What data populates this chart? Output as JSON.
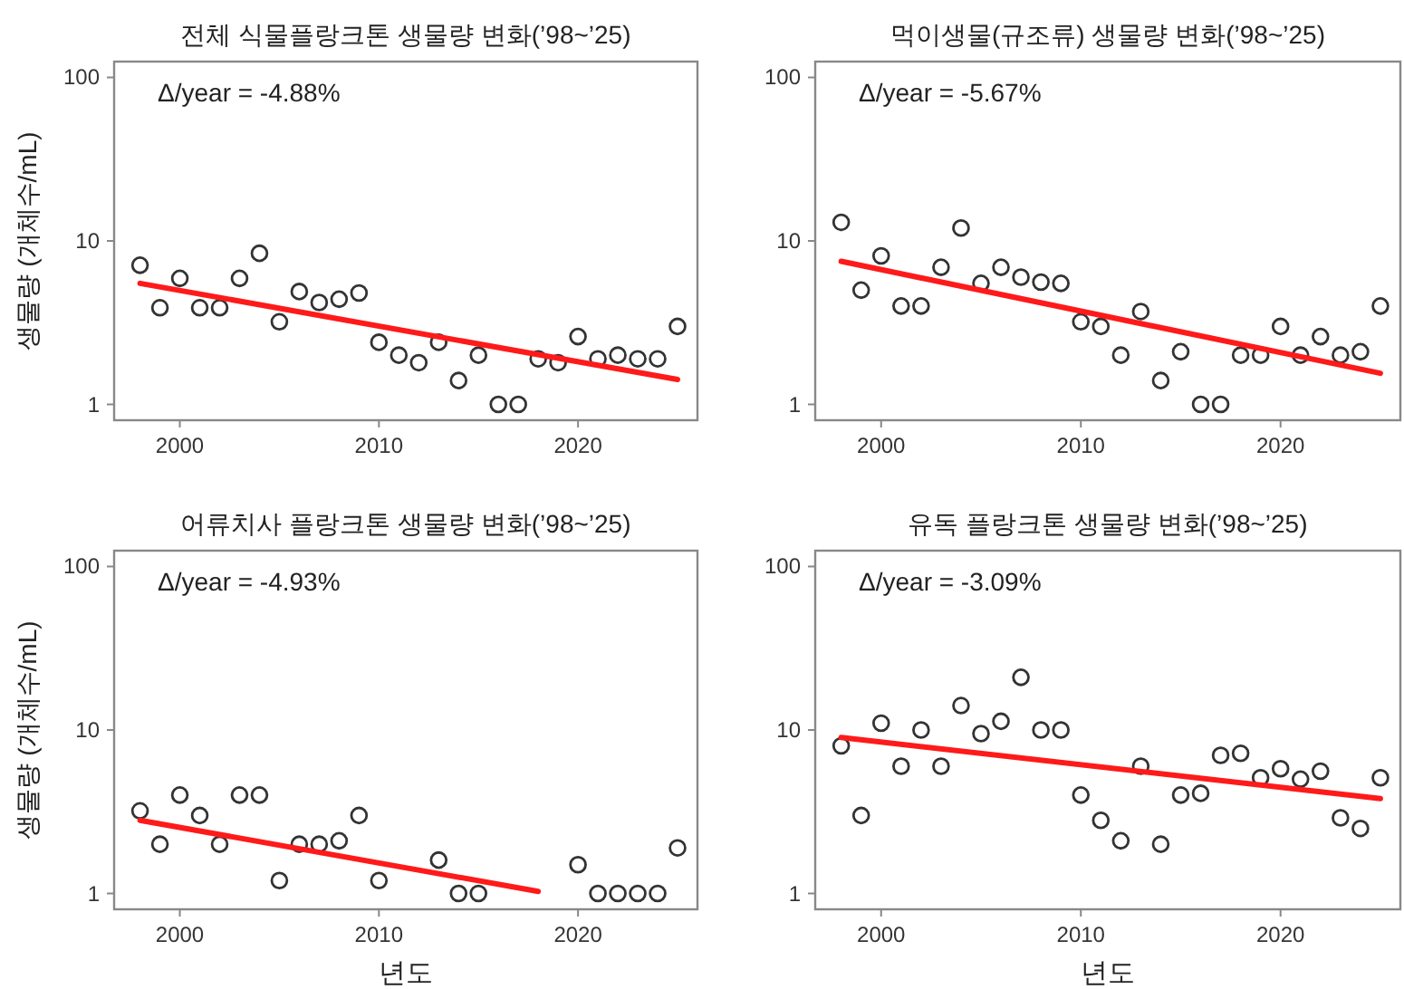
{
  "chart_data": [
    {
      "type": "scatter",
      "title": "전체 식물플랑크톤 생물량 변화(’98~’25)",
      "ylabel": "생물량 (개체수/mL)",
      "annotations": [
        "Δ/year = -4.88%"
      ],
      "log": "y",
      "grid": false,
      "xlim": [
        1996.7,
        2026
      ],
      "ylim": [
        0.8,
        125
      ],
      "xticks": [
        2000,
        2010,
        2020
      ],
      "yticks": [
        1,
        10,
        100
      ],
      "series": [
        {
          "marker": "circle",
          "color": "#333333",
          "x": [
            1998,
            1999,
            2000,
            2001,
            2002,
            2003,
            2004,
            2005,
            2006,
            2007,
            2008,
            2009,
            2010,
            2011,
            2012,
            2013,
            2014,
            2015,
            2016,
            2017,
            2018,
            2019,
            2020,
            2021,
            2022,
            2023,
            2024,
            2025
          ],
          "values": [
            7.1,
            3.9,
            5.9,
            3.9,
            3.9,
            5.9,
            8.4,
            3.2,
            4.9,
            4.2,
            4.4,
            4.8,
            2.4,
            2.0,
            1.8,
            2.4,
            1.4,
            2.0,
            1.0,
            1.0,
            1.9,
            1.8,
            2.6,
            1.9,
            2.0,
            1.9,
            1.9,
            3.0
          ]
        },
        {
          "type": "line",
          "marker": "none",
          "color": "#ff1a1a",
          "x": [
            1998,
            2025
          ],
          "values": [
            5.5,
            1.42
          ]
        }
      ]
    },
    {
      "type": "scatter",
      "title": "먹이생물(규조류) 생물량 변화(’98~’25)",
      "annotations": [
        "Δ/year = -5.67%"
      ],
      "log": "y",
      "grid": false,
      "xlim": [
        1996.7,
        2026
      ],
      "ylim": [
        0.8,
        125
      ],
      "xticks": [
        2000,
        2010,
        2020
      ],
      "yticks": [
        1,
        10,
        100
      ],
      "series": [
        {
          "marker": "circle",
          "color": "#333333",
          "x": [
            1998,
            1999,
            2000,
            2001,
            2002,
            2003,
            2004,
            2005,
            2006,
            2007,
            2008,
            2009,
            2010,
            2011,
            2012,
            2013,
            2014,
            2015,
            2016,
            2017,
            2018,
            2019,
            2020,
            2021,
            2022,
            2023,
            2024,
            2025
          ],
          "values": [
            13.0,
            5.0,
            8.1,
            4.0,
            4.0,
            6.9,
            12.0,
            5.5,
            6.9,
            6.0,
            5.6,
            5.5,
            3.2,
            3.0,
            2.0,
            3.7,
            1.4,
            2.1,
            1.0,
            1.0,
            2.0,
            2.0,
            3.0,
            2.0,
            2.6,
            2.0,
            2.1,
            4.0
          ]
        },
        {
          "type": "line",
          "marker": "none",
          "color": "#ff1a1a",
          "x": [
            1998,
            2025
          ],
          "values": [
            7.5,
            1.55
          ]
        }
      ]
    },
    {
      "type": "scatter",
      "title": "어류치사 플랑크톤 생물량 변화(’98~’25)",
      "xlabel": "년도",
      "ylabel": "생물량 (개체수/mL)",
      "annotations": [
        "Δ/year = -4.93%"
      ],
      "log": "y",
      "grid": false,
      "xlim": [
        1996.7,
        2026
      ],
      "ylim": [
        0.8,
        125
      ],
      "xticks": [
        2000,
        2010,
        2020
      ],
      "yticks": [
        1,
        10,
        100
      ],
      "series": [
        {
          "marker": "circle",
          "color": "#333333",
          "x": [
            1998,
            1999,
            2000,
            2001,
            2002,
            2003,
            2004,
            2005,
            2006,
            2007,
            2008,
            2009,
            2010,
            2013,
            2014,
            2015,
            2020,
            2021,
            2022,
            2023,
            2024,
            2025
          ],
          "values": [
            3.2,
            2.0,
            4.0,
            3.0,
            2.0,
            4.0,
            4.0,
            1.2,
            2.0,
            2.0,
            2.1,
            3.0,
            1.2,
            1.6,
            1.0,
            1.0,
            1.5,
            1.0,
            1.0,
            1.0,
            1.0,
            1.9
          ]
        },
        {
          "type": "line",
          "marker": "none",
          "color": "#ff1a1a",
          "x": [
            1998,
            2018
          ],
          "values": [
            2.8,
            1.03
          ]
        }
      ]
    },
    {
      "type": "scatter",
      "title": "유독 플랑크톤 생물량 변화(’98~’25)",
      "xlabel": "년도",
      "annotations": [
        "Δ/year = -3.09%"
      ],
      "log": "y",
      "grid": false,
      "xlim": [
        1996.7,
        2026
      ],
      "ylim": [
        0.8,
        125
      ],
      "xticks": [
        2000,
        2010,
        2020
      ],
      "yticks": [
        1,
        10,
        100
      ],
      "series": [
        {
          "marker": "circle",
          "color": "#333333",
          "x": [
            1998,
            1999,
            2000,
            2001,
            2002,
            2003,
            2004,
            2005,
            2006,
            2007,
            2008,
            2009,
            2010,
            2011,
            2012,
            2013,
            2014,
            2015,
            2016,
            2017,
            2018,
            2019,
            2020,
            2021,
            2022,
            2023,
            2024,
            2025
          ],
          "values": [
            8.0,
            3.0,
            11.0,
            6.0,
            10.0,
            6.0,
            14.1,
            9.5,
            11.3,
            21.0,
            10.0,
            10.0,
            4.0,
            2.8,
            2.1,
            6.0,
            2.0,
            4.0,
            4.1,
            7.0,
            7.2,
            5.1,
            5.8,
            5.0,
            5.6,
            2.9,
            2.5,
            5.1
          ]
        },
        {
          "type": "line",
          "marker": "none",
          "color": "#ff1a1a",
          "x": [
            1998,
            2025
          ],
          "values": [
            9.0,
            3.8
          ]
        }
      ]
    }
  ]
}
